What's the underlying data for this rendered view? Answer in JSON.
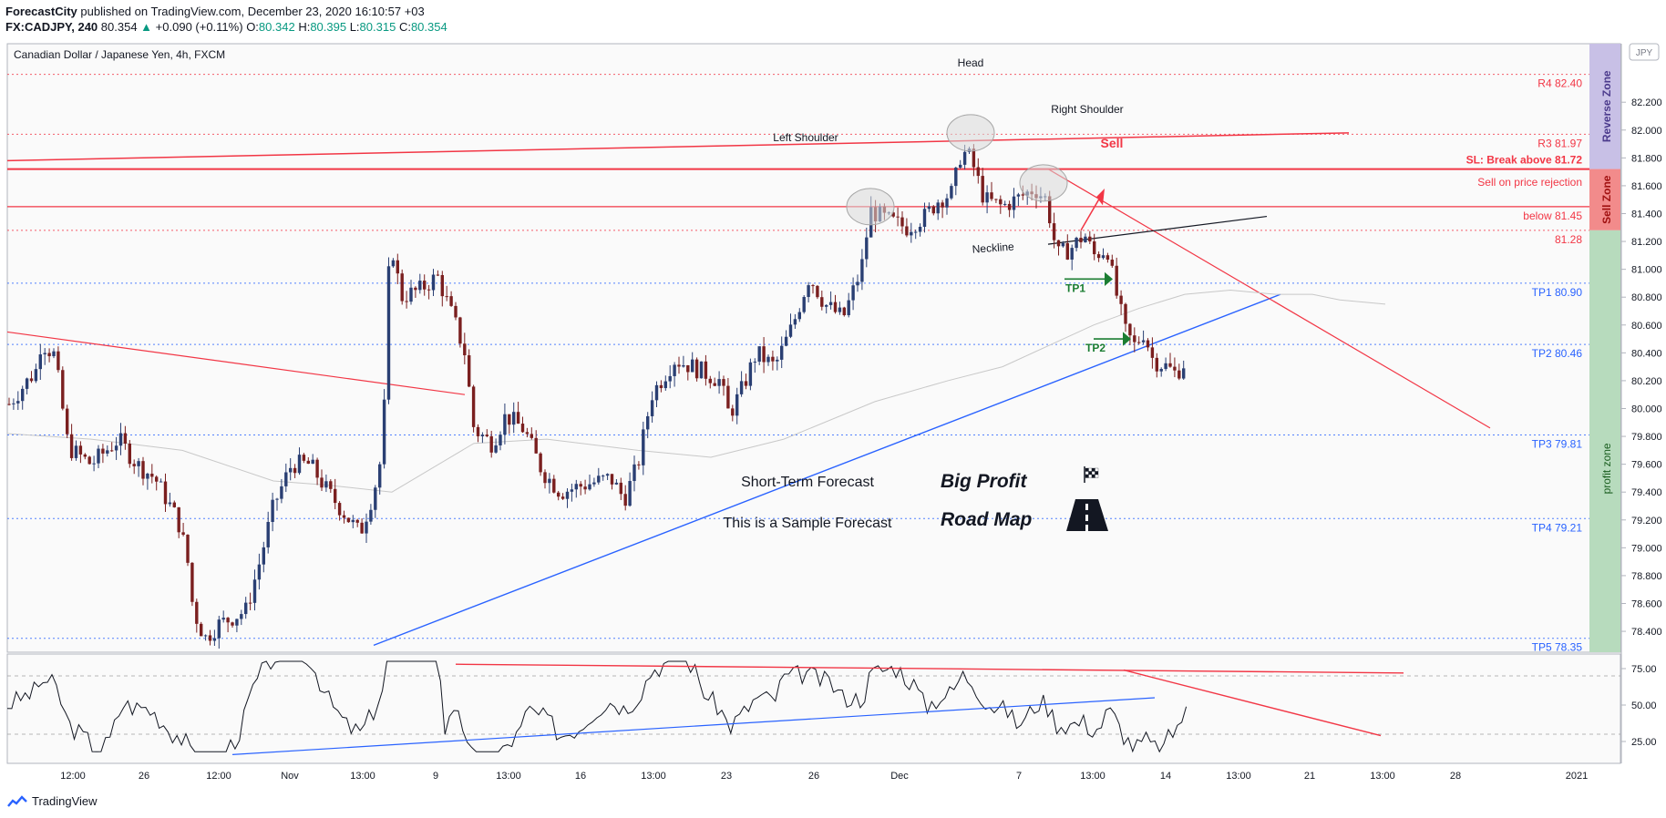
{
  "header": {
    "publisher": "ForecastCity",
    "published_text": "published on TradingView.com, December 23, 2020 16:10:57 +03",
    "symbol": "FX:CADJPY, 240",
    "last": "80.354",
    "change": "+0.090 (+0.11%)",
    "o_label": "O:",
    "o": "80.342",
    "h_label": "H:",
    "h": "80.395",
    "l_label": "L:",
    "l": "80.315",
    "c_label": "C:",
    "c": "80.354"
  },
  "chart_title": "Canadian Dollar / Japanese Yen, 4h, FXCM",
  "currency_badge": "JPY",
  "footer": {
    "brand": "TradingView"
  },
  "colors": {
    "up": "#2a3f73",
    "down": "#7a1f1f",
    "red": "#f23645",
    "blue": "#2962ff",
    "green": "#1b7d32",
    "grid": "#e6e6e6"
  },
  "chart_data": [
    {
      "type": "candlestick",
      "title": "Canadian Dollar / Japanese Yen, 4h, FXCM",
      "x_ticks": [
        "12:00",
        "26",
        "12:00",
        "Nov",
        "13:00",
        "9",
        "13:00",
        "16",
        "13:00",
        "23",
        "26",
        "Dec",
        "7",
        "13:00",
        "14",
        "13:00",
        "21",
        "13:00",
        "28",
        "2021"
      ],
      "y_ticks": [
        "78.400",
        "78.600",
        "78.800",
        "79.000",
        "79.200",
        "79.400",
        "79.600",
        "79.800",
        "80.000",
        "80.200",
        "80.400",
        "80.600",
        "80.800",
        "81.000",
        "81.200",
        "81.400",
        "81.600",
        "81.800",
        "82.000",
        "82.200"
      ],
      "ylim": [
        78.25,
        82.62
      ],
      "price_path": [
        [
          0,
          79.95
        ],
        [
          40,
          80.28
        ],
        [
          45,
          80.48
        ],
        [
          60,
          80.38
        ],
        [
          75,
          79.72
        ],
        [
          100,
          79.6
        ],
        [
          130,
          79.78
        ],
        [
          150,
          79.6
        ],
        [
          170,
          79.5
        ],
        [
          195,
          79.2
        ],
        [
          205,
          78.95
        ],
        [
          212,
          78.55
        ],
        [
          225,
          78.35
        ],
        [
          240,
          78.45
        ],
        [
          270,
          78.55
        ],
        [
          285,
          78.9
        ],
        [
          300,
          79.3
        ],
        [
          320,
          79.6
        ],
        [
          340,
          79.6
        ],
        [
          360,
          79.4
        ],
        [
          395,
          79.1
        ],
        [
          410,
          79.4
        ],
        [
          420,
          79.7
        ],
        [
          428,
          81.25
        ],
        [
          440,
          80.8
        ],
        [
          460,
          80.85
        ],
        [
          480,
          80.95
        ],
        [
          500,
          80.6
        ],
        [
          510,
          80.4
        ],
        [
          520,
          79.85
        ],
        [
          540,
          79.75
        ],
        [
          555,
          79.95
        ],
        [
          575,
          79.85
        ],
        [
          595,
          79.55
        ],
        [
          615,
          79.4
        ],
        [
          640,
          79.45
        ],
        [
          670,
          79.5
        ],
        [
          685,
          79.35
        ],
        [
          700,
          79.6
        ],
        [
          715,
          80.1
        ],
        [
          740,
          80.35
        ],
        [
          760,
          80.3
        ],
        [
          790,
          80.2
        ],
        [
          800,
          79.95
        ],
        [
          815,
          80.15
        ],
        [
          830,
          80.4
        ],
        [
          850,
          80.3
        ],
        [
          870,
          80.6
        ],
        [
          888,
          80.95
        ],
        [
          905,
          80.75
        ],
        [
          925,
          80.65
        ],
        [
          945,
          81.0
        ],
        [
          955,
          81.42
        ],
        [
          975,
          81.35
        ],
        [
          995,
          81.3
        ],
        [
          1015,
          81.38
        ],
        [
          1030,
          81.5
        ],
        [
          1045,
          81.55
        ],
        [
          1055,
          81.85
        ],
        [
          1065,
          81.8
        ],
        [
          1080,
          81.5
        ],
        [
          1100,
          81.45
        ],
        [
          1120,
          81.52
        ],
        [
          1135,
          81.58
        ],
        [
          1148,
          81.5
        ],
        [
          1160,
          81.1
        ],
        [
          1175,
          81.15
        ],
        [
          1190,
          81.25
        ],
        [
          1200,
          81.1
        ],
        [
          1215,
          81.15
        ],
        [
          1222,
          80.9
        ],
        [
          1235,
          80.55
        ],
        [
          1245,
          80.45
        ],
        [
          1255,
          80.55
        ],
        [
          1265,
          80.35
        ],
        [
          1280,
          80.3
        ],
        [
          1290,
          80.25
        ],
        [
          1302,
          80.35
        ]
      ]
    },
    {
      "type": "line",
      "name": "RSI",
      "y_ticks": [
        "25.00",
        "50.00",
        "75.00"
      ],
      "ylim": [
        10,
        85
      ]
    }
  ],
  "levels": [
    {
      "label": "R4 82.40",
      "value": 82.4
    },
    {
      "label": "R3 81.97",
      "value": 81.97
    },
    {
      "label": "SL: Break above 81.72",
      "value": 81.72
    },
    {
      "label": "Sell on price rejection",
      "value": 81.6
    },
    {
      "label": "below 81.45",
      "value": 81.45
    },
    {
      "label": "81.28",
      "value": 81.28
    },
    {
      "label": "TP1 80.90",
      "value": 80.9
    },
    {
      "label": "TP2 80.46",
      "value": 80.46
    },
    {
      "label": "TP3 79.81",
      "value": 79.81
    },
    {
      "label": "TP4 79.21",
      "value": 79.21
    },
    {
      "label": "TP5 78.35",
      "value": 78.35
    }
  ],
  "zones": {
    "reverse": "Reverse Zone",
    "sell": "Sell Zone",
    "profit": "profit zone"
  },
  "annotations": {
    "head": "Head",
    "left_shoulder": "Left Shoulder",
    "right_shoulder": "Right Shoulder",
    "neckline": "Neckline",
    "sell": "Sell",
    "tp1": "TP1",
    "tp2": "TP2",
    "short_term": "Short-Term Forecast",
    "sample": "This is a Sample Forecast",
    "big_profit": "Big Profit",
    "road_map": "Road Map"
  }
}
